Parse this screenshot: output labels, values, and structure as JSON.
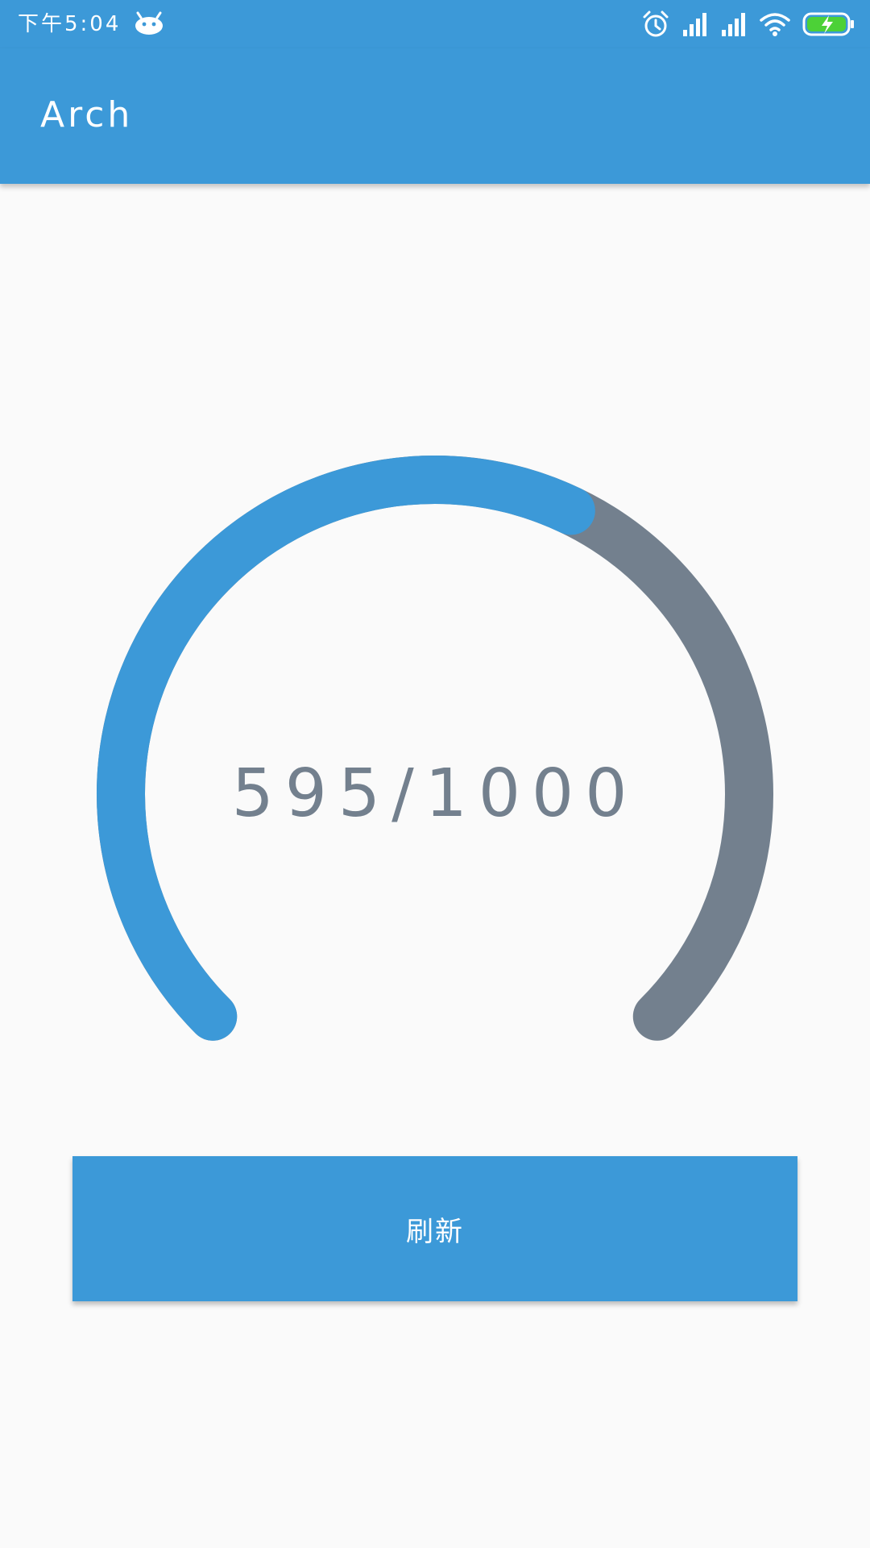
{
  "status_bar": {
    "time": "下午5:04",
    "icons": [
      "android-debug-icon",
      "alarm-icon",
      "signal-icon",
      "signal-icon",
      "wifi-icon",
      "battery-charging-icon"
    ]
  },
  "app_bar": {
    "title": "Arch"
  },
  "gauge": {
    "current": 595,
    "max": 1000,
    "progress": 0.595,
    "label": "595/1000"
  },
  "refresh_button": {
    "label": "刷新"
  },
  "colors": {
    "primary": "#3C99D8",
    "track": "#73808E",
    "background": "#FAFAFA",
    "text_on_primary": "#FFFFFF"
  }
}
